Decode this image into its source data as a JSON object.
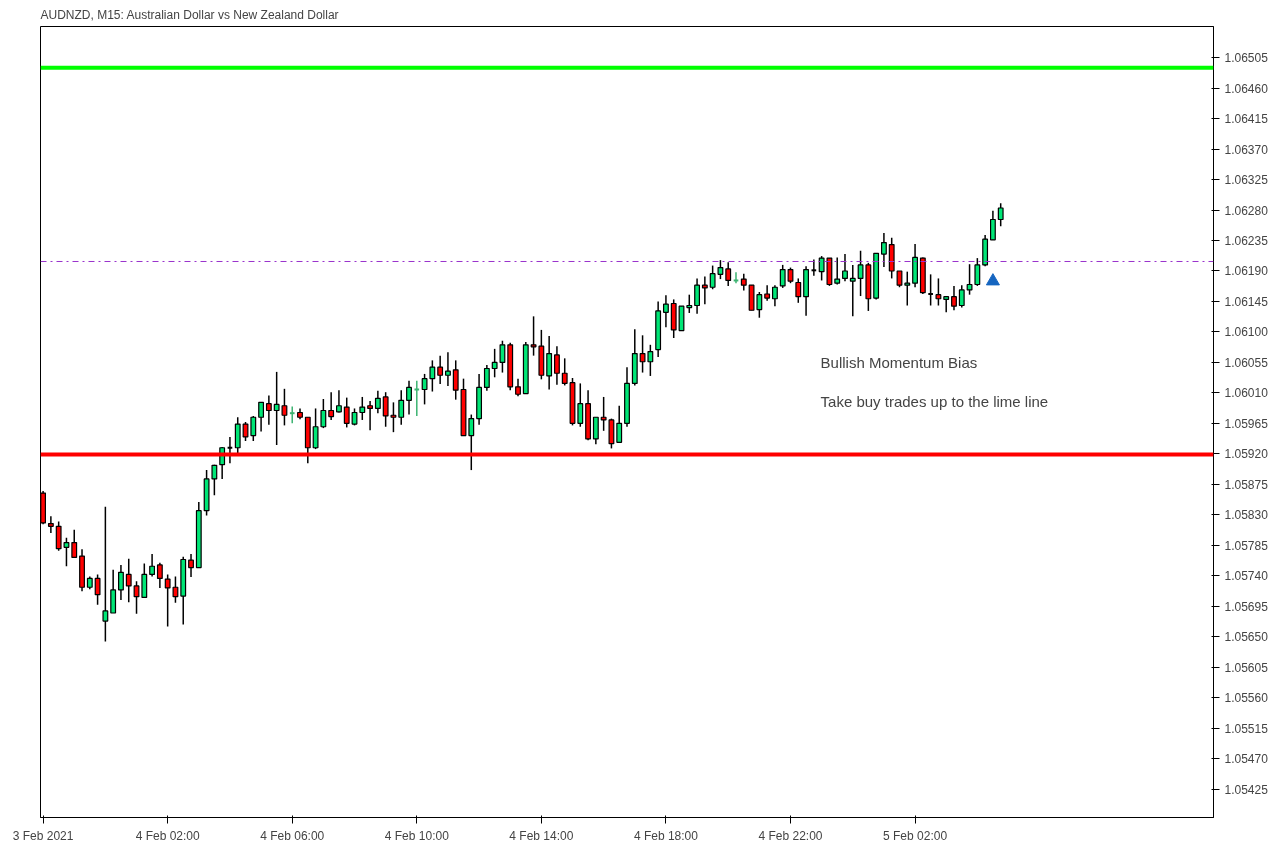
{
  "chart_data": {
    "type": "candlestick",
    "title": "AUDNZD, M15:  Australian Dollar vs New Zealand Dollar",
    "annotations": [
      "Bullish Momentum Bias",
      "Take buy trades up to the lime line"
    ],
    "x": [
      "2021-02-03T22:00",
      "2021-02-03T22:15",
      "2021-02-03T22:30",
      "2021-02-03T22:45",
      "2021-02-03T23:00",
      "2021-02-03T23:15",
      "2021-02-03T23:30",
      "2021-02-03T23:45",
      "2021-02-04T00:00",
      "2021-02-04T00:15",
      "2021-02-04T00:30",
      "2021-02-04T00:45",
      "2021-02-04T01:00",
      "2021-02-04T01:15",
      "2021-02-04T01:30",
      "2021-02-04T01:45",
      "2021-02-04T02:00",
      "2021-02-04T02:15",
      "2021-02-04T02:30",
      "2021-02-04T02:45",
      "2021-02-04T03:00",
      "2021-02-04T03:15",
      "2021-02-04T03:30",
      "2021-02-04T03:45",
      "2021-02-04T04:00",
      "2021-02-04T04:15",
      "2021-02-04T04:30",
      "2021-02-04T04:45",
      "2021-02-04T05:00",
      "2021-02-04T05:15",
      "2021-02-04T05:30",
      "2021-02-04T05:45",
      "2021-02-04T06:00",
      "2021-02-04T06:15",
      "2021-02-04T06:30",
      "2021-02-04T06:45",
      "2021-02-04T07:00",
      "2021-02-04T07:15",
      "2021-02-04T07:30",
      "2021-02-04T07:45",
      "2021-02-04T08:00",
      "2021-02-04T08:15",
      "2021-02-04T08:30",
      "2021-02-04T08:45",
      "2021-02-04T09:00",
      "2021-02-04T09:15",
      "2021-02-04T09:30",
      "2021-02-04T09:45",
      "2021-02-04T10:00",
      "2021-02-04T10:15",
      "2021-02-04T10:30",
      "2021-02-04T10:45",
      "2021-02-04T11:00",
      "2021-02-04T11:15",
      "2021-02-04T11:30",
      "2021-02-04T11:45",
      "2021-02-04T12:00",
      "2021-02-04T12:15",
      "2021-02-04T12:30",
      "2021-02-04T12:45",
      "2021-02-04T13:00",
      "2021-02-04T13:15",
      "2021-02-04T13:30",
      "2021-02-04T13:45",
      "2021-02-04T14:00",
      "2021-02-04T14:15",
      "2021-02-04T14:30",
      "2021-02-04T14:45",
      "2021-02-04T15:00",
      "2021-02-04T15:15",
      "2021-02-04T15:30",
      "2021-02-04T15:45",
      "2021-02-04T16:00",
      "2021-02-04T16:15",
      "2021-02-04T16:30",
      "2021-02-04T16:45",
      "2021-02-04T17:00",
      "2021-02-04T17:15",
      "2021-02-04T17:30",
      "2021-02-04T17:45",
      "2021-02-04T18:00",
      "2021-02-04T18:15",
      "2021-02-04T18:30",
      "2021-02-04T18:45",
      "2021-02-04T19:00",
      "2021-02-04T19:15",
      "2021-02-04T19:30",
      "2021-02-04T19:45",
      "2021-02-04T20:00",
      "2021-02-04T20:15",
      "2021-02-04T20:30",
      "2021-02-04T20:45",
      "2021-02-04T21:00",
      "2021-02-04T21:15",
      "2021-02-04T21:30",
      "2021-02-04T21:45",
      "2021-02-04T22:00",
      "2021-02-04T22:15",
      "2021-02-04T22:30",
      "2021-02-04T22:45",
      "2021-02-04T23:00",
      "2021-02-04T23:15",
      "2021-02-04T23:30",
      "2021-02-04T23:45",
      "2021-02-05T00:00",
      "2021-02-05T00:15",
      "2021-02-05T00:30",
      "2021-02-05T00:45",
      "2021-02-05T01:00",
      "2021-02-05T01:15",
      "2021-02-05T01:30",
      "2021-02-05T01:45",
      "2021-02-05T02:00",
      "2021-02-05T02:15",
      "2021-02-05T02:30",
      "2021-02-05T02:45",
      "2021-02-05T03:00",
      "2021-02-05T03:15",
      "2021-02-05T03:30",
      "2021-02-05T03:45",
      "2021-02-05T04:00",
      "2021-02-05T04:15",
      "2021-02-05T04:30",
      "2021-02-05T04:45"
    ],
    "ohlc": [
      [
        1.05862,
        1.05865,
        1.05816,
        1.05818
      ],
      [
        1.05817,
        1.05828,
        1.05803,
        1.05813
      ],
      [
        1.05813,
        1.0582,
        1.05777,
        1.0578
      ],
      [
        1.05782,
        1.05796,
        1.05754,
        1.05789
      ],
      [
        1.05789,
        1.05808,
        1.05766,
        1.05767
      ],
      [
        1.05769,
        1.05779,
        1.05717,
        1.05723
      ],
      [
        1.05723,
        1.05739,
        1.0572,
        1.05736
      ],
      [
        1.05736,
        1.05742,
        1.05697,
        1.05712
      ],
      [
        1.05673,
        1.05842,
        1.05643,
        1.05688
      ],
      [
        1.05685,
        1.05749,
        1.05685,
        1.05719
      ],
      [
        1.05719,
        1.05756,
        1.05704,
        1.05745
      ],
      [
        1.05742,
        1.05765,
        1.05701,
        1.05725
      ],
      [
        1.05725,
        1.05732,
        1.05684,
        1.05709
      ],
      [
        1.05708,
        1.05758,
        1.05707,
        1.05742
      ],
      [
        1.05742,
        1.05772,
        1.05739,
        1.05754
      ],
      [
        1.05756,
        1.05759,
        1.05722,
        1.05736
      ],
      [
        1.05735,
        1.05742,
        1.05665,
        1.05722
      ],
      [
        1.05723,
        1.05739,
        1.057,
        1.05709
      ],
      [
        1.0571,
        1.05768,
        1.05668,
        1.05764
      ],
      [
        1.05763,
        1.05772,
        1.05738,
        1.05752
      ],
      [
        1.05752,
        1.05849,
        1.05752,
        1.05836
      ],
      [
        1.05836,
        1.05896,
        1.05829,
        1.05883
      ],
      [
        1.05883,
        1.05904,
        1.05859,
        1.05903
      ],
      [
        1.05904,
        1.0593,
        1.05883,
        1.05929
      ],
      [
        1.05929,
        1.05945,
        1.05906,
        1.05929
      ],
      [
        1.05929,
        1.05974,
        1.05919,
        1.05964
      ],
      [
        1.05964,
        1.05967,
        1.05939,
        1.05945
      ],
      [
        1.05947,
        1.05976,
        1.05939,
        1.05974
      ],
      [
        1.05974,
        1.05996,
        1.05953,
        1.05996
      ],
      [
        1.05994,
        1.06006,
        1.05963,
        1.05984
      ],
      [
        1.05984,
        1.06041,
        1.05933,
        1.05993
      ],
      [
        1.05991,
        1.06016,
        1.05962,
        1.05977
      ],
      [
        1.0598,
        1.0599,
        1.05965,
        1.0598
      ],
      [
        1.05981,
        1.05987,
        1.05971,
        1.05974
      ],
      [
        1.05974,
        1.05974,
        1.05906,
        1.05929
      ],
      [
        1.05929,
        1.05987,
        1.05927,
        1.0596
      ],
      [
        1.0596,
        1.06001,
        1.05958,
        1.05984
      ],
      [
        1.05984,
        1.06011,
        1.0597,
        1.05975
      ],
      [
        1.05982,
        1.06014,
        1.05981,
        1.05991
      ],
      [
        1.05989,
        1.06003,
        1.05959,
        1.05965
      ],
      [
        1.05964,
        1.05987,
        1.05962,
        1.05981
      ],
      [
        1.05981,
        1.06004,
        1.0597,
        1.05989
      ],
      [
        1.05991,
        1.05998,
        1.05955,
        1.05987
      ],
      [
        1.05987,
        1.06013,
        1.0598,
        1.06002
      ],
      [
        1.06004,
        1.06011,
        1.0596,
        1.05976
      ],
      [
        1.05977,
        1.05996,
        1.05952,
        1.05974
      ],
      [
        1.05974,
        1.06014,
        1.05963,
        1.05999
      ],
      [
        1.05999,
        1.06028,
        1.05978,
        1.06018
      ],
      [
        1.06015,
        1.06028,
        1.05976,
        1.06015
      ],
      [
        1.06015,
        1.06038,
        1.05993,
        1.06031
      ],
      [
        1.06031,
        1.06058,
        1.06012,
        1.06048
      ],
      [
        1.06048,
        1.06065,
        1.06023,
        1.06036
      ],
      [
        1.06036,
        1.0607,
        1.0602,
        1.06042
      ],
      [
        1.06044,
        1.06058,
        1.06,
        1.06014
      ],
      [
        1.06015,
        1.06031,
        1.05947,
        1.05947
      ],
      [
        1.05947,
        1.05978,
        1.05896,
        1.05972
      ],
      [
        1.05972,
        1.06038,
        1.05963,
        1.06018
      ],
      [
        1.06018,
        1.06051,
        1.06013,
        1.06046
      ],
      [
        1.06046,
        1.06075,
        1.06033,
        1.06055
      ],
      [
        1.06055,
        1.06087,
        1.0604,
        1.06081
      ],
      [
        1.06081,
        1.06084,
        1.06014,
        1.06019
      ],
      [
        1.06019,
        1.06031,
        1.06005,
        1.06008
      ],
      [
        1.06009,
        1.06085,
        1.06009,
        1.06081
      ],
      [
        1.06081,
        1.06123,
        1.06065,
        1.06078
      ],
      [
        1.06079,
        1.06103,
        1.0603,
        1.06036
      ],
      [
        1.06035,
        1.06094,
        1.06015,
        1.06068
      ],
      [
        1.06066,
        1.06079,
        1.06022,
        1.06039
      ],
      [
        1.06039,
        1.06061,
        1.06021,
        1.06024
      ],
      [
        1.06025,
        1.06032,
        1.05962,
        1.05965
      ],
      [
        1.05965,
        1.06024,
        1.0596,
        1.05994
      ],
      [
        1.05994,
        1.06014,
        1.0594,
        1.05942
      ],
      [
        1.05942,
        1.05974,
        1.05934,
        1.05974
      ],
      [
        1.05974,
        1.06004,
        1.05954,
        1.0597
      ],
      [
        1.0597,
        1.05972,
        1.05928,
        1.05935
      ],
      [
        1.05937,
        1.05991,
        1.05937,
        1.05965
      ],
      [
        1.05965,
        1.06048,
        1.0596,
        1.06024
      ],
      [
        1.06024,
        1.06104,
        1.06021,
        1.06068
      ],
      [
        1.06068,
        1.06095,
        1.0604,
        1.06056
      ],
      [
        1.06056,
        1.06081,
        1.06035,
        1.06071
      ],
      [
        1.06074,
        1.06145,
        1.06063,
        1.06131
      ],
      [
        1.06129,
        1.06154,
        1.06107,
        1.06141
      ],
      [
        1.06142,
        1.06148,
        1.06091,
        1.06103
      ],
      [
        1.06102,
        1.06138,
        1.06102,
        1.06138
      ],
      [
        1.06136,
        1.06155,
        1.06128,
        1.06139
      ],
      [
        1.06139,
        1.06179,
        1.06127,
        1.06169
      ],
      [
        1.06169,
        1.06182,
        1.06141,
        1.06165
      ],
      [
        1.06166,
        1.06198,
        1.06163,
        1.06186
      ],
      [
        1.06185,
        1.06206,
        1.06178,
        1.06195
      ],
      [
        1.06193,
        1.06203,
        1.06168,
        1.06176
      ],
      [
        1.06176,
        1.06188,
        1.06172,
        1.06176
      ],
      [
        1.06178,
        1.06186,
        1.06161,
        1.06169
      ],
      [
        1.06169,
        1.06169,
        1.06132,
        1.06132
      ],
      [
        1.06133,
        1.06159,
        1.06121,
        1.06155
      ],
      [
        1.06156,
        1.06169,
        1.06146,
        1.0615
      ],
      [
        1.06149,
        1.06169,
        1.06138,
        1.06166
      ],
      [
        1.06168,
        1.06199,
        1.06165,
        1.06192
      ],
      [
        1.06192,
        1.06195,
        1.06172,
        1.06175
      ],
      [
        1.06173,
        1.06179,
        1.06143,
        1.06152
      ],
      [
        1.06152,
        1.06197,
        1.06124,
        1.06192
      ],
      [
        1.06191,
        1.06207,
        1.06183,
        1.06191
      ],
      [
        1.06189,
        1.06212,
        1.06176,
        1.06209
      ],
      [
        1.06209,
        1.06209,
        1.06168,
        1.0617
      ],
      [
        1.06172,
        1.0621,
        1.0617,
        1.06178
      ],
      [
        1.06179,
        1.06215,
        1.06175,
        1.0619
      ],
      [
        1.06175,
        1.06199,
        1.06123,
        1.06179
      ],
      [
        1.06179,
        1.0622,
        1.06153,
        1.06199
      ],
      [
        1.06199,
        1.06202,
        1.06131,
        1.06149
      ],
      [
        1.0615,
        1.06216,
        1.06148,
        1.06216
      ],
      [
        1.06215,
        1.06246,
        1.06196,
        1.06232
      ],
      [
        1.06229,
        1.06239,
        1.06179,
        1.0619
      ],
      [
        1.0619,
        1.0619,
        1.06166,
        1.06169
      ],
      [
        1.06169,
        1.06189,
        1.06139,
        1.06172
      ],
      [
        1.06172,
        1.0623,
        1.06166,
        1.0621
      ],
      [
        1.06209,
        1.0621,
        1.06156,
        1.06158
      ],
      [
        1.06156,
        1.06185,
        1.06139,
        1.06156
      ],
      [
        1.06155,
        1.06179,
        1.06139,
        1.06149
      ],
      [
        1.06148,
        1.06152,
        1.06129,
        1.06152
      ],
      [
        1.06152,
        1.06168,
        1.06132,
        1.06138
      ],
      [
        1.06139,
        1.06169,
        1.06136,
        1.06162
      ],
      [
        1.06162,
        1.062,
        1.06155,
        1.0617
      ],
      [
        1.0617,
        1.06209,
        1.06168,
        1.06199
      ],
      [
        1.06199,
        1.06243,
        1.06197,
        1.06237
      ],
      [
        1.06236,
        1.06279,
        1.06236,
        1.06266
      ],
      [
        1.06266,
        1.0629,
        1.06256,
        1.06283
      ]
    ],
    "colors": [
      "#ff0000",
      "#ff0000",
      "#ff0000",
      "#00e676",
      "#ff0000",
      "#ff0000",
      "#00e676",
      "#ff0000",
      "#00e676",
      "#00e676",
      "#00e676",
      "#ff0000",
      "#ff0000",
      "#00e676",
      "#00e676",
      "#ff0000",
      "#ff0000",
      "#ff0000",
      "#00e676",
      "#ff0000",
      "#00e676",
      "#00e676",
      "#00e676",
      "#00e676",
      "#000000",
      "#00e676",
      "#ff0000",
      "#00e676",
      "#00e676",
      "#ff0000",
      "#00e676",
      "#ff0000",
      "#3cb371",
      "#ff0000",
      "#ff0000",
      "#00e676",
      "#00e676",
      "#ff0000",
      "#00e676",
      "#ff0000",
      "#00e676",
      "#00e676",
      "#ff0000",
      "#00e676",
      "#ff0000",
      "#ff0000",
      "#00e676",
      "#00e676",
      "#3cb371",
      "#00e676",
      "#00e676",
      "#ff0000",
      "#00e676",
      "#ff0000",
      "#ff0000",
      "#00e676",
      "#00e676",
      "#00e676",
      "#00e676",
      "#00e676",
      "#ff0000",
      "#ff0000",
      "#00e676",
      "#ff0000",
      "#ff0000",
      "#00e676",
      "#ff0000",
      "#ff0000",
      "#ff0000",
      "#00e676",
      "#ff0000",
      "#00e676",
      "#ff0000",
      "#ff0000",
      "#00e676",
      "#00e676",
      "#00e676",
      "#ff0000",
      "#00e676",
      "#00e676",
      "#00e676",
      "#ff0000",
      "#00e676",
      "#00e676",
      "#00e676",
      "#ff0000",
      "#00e676",
      "#00e676",
      "#ff0000",
      "#3cb371",
      "#ff0000",
      "#ff0000",
      "#00e676",
      "#ff0000",
      "#00e676",
      "#00e676",
      "#ff0000",
      "#ff0000",
      "#00e676",
      "#000000",
      "#00e676",
      "#ff0000",
      "#00e676",
      "#00e676",
      "#00e676",
      "#00e676",
      "#ff0000",
      "#00e676",
      "#00e676",
      "#ff0000",
      "#ff0000",
      "#00e676",
      "#00e676",
      "#ff0000",
      "#000000",
      "#ff0000",
      "#00e676",
      "#ff0000",
      "#00e676",
      "#00e676",
      "#00e676",
      "#00e676",
      "#00e676",
      "#00e676"
    ],
    "series": [
      {
        "type": "scatter",
        "marker": "triangle",
        "color": "#1565c0",
        "x": [
          "2021-02-05T04:30"
        ],
        "values": [
          1.06175
        ]
      }
    ],
    "ref_lines": [
      {
        "axis": "y",
        "value": 1.0649,
        "color": "#00ff00",
        "line_style": "solid"
      },
      {
        "axis": "y",
        "value": 1.05919,
        "color": "#ff0000",
        "line_style": "solid"
      },
      {
        "axis": "y",
        "value": 1.06204,
        "color": "#9932cc",
        "line_style": "dashdot"
      }
    ],
    "xlim": [
      "2021-02-03T21:55",
      "2021-02-05T11:35"
    ],
    "xticks": [
      {
        "value": "2021-02-03T22:00",
        "label": "3 Feb 2021"
      },
      {
        "value": "2021-02-04T02:00",
        "label": "4 Feb 02:00"
      },
      {
        "value": "2021-02-04T06:00",
        "label": "4 Feb 06:00"
      },
      {
        "value": "2021-02-04T10:00",
        "label": "4 Feb 10:00"
      },
      {
        "value": "2021-02-04T14:00",
        "label": "4 Feb 14:00"
      },
      {
        "value": "2021-02-04T18:00",
        "label": "4 Feb 18:00"
      },
      {
        "value": "2021-02-04T22:00",
        "label": "4 Feb 22:00"
      },
      {
        "value": "2021-02-05T02:00",
        "label": "5 Feb 02:00"
      }
    ],
    "ylim": [
      1.05383,
      1.06551
    ],
    "yticks": [
      {
        "value": 1.05425,
        "label": "1.05425"
      },
      {
        "value": 1.0547,
        "label": "1.05470"
      },
      {
        "value": 1.05515,
        "label": "1.05515"
      },
      {
        "value": 1.0556,
        "label": "1.05560"
      },
      {
        "value": 1.05605,
        "label": "1.05605"
      },
      {
        "value": 1.0565,
        "label": "1.05650"
      },
      {
        "value": 1.05695,
        "label": "1.05695"
      },
      {
        "value": 1.0574,
        "label": "1.05740"
      },
      {
        "value": 1.05785,
        "label": "1.05785"
      },
      {
        "value": 1.0583,
        "label": "1.05830"
      },
      {
        "value": 1.05875,
        "label": "1.05875"
      },
      {
        "value": 1.0592,
        "label": "1.05920"
      },
      {
        "value": 1.05965,
        "label": "1.05965"
      },
      {
        "value": 1.0601,
        "label": "1.06010"
      },
      {
        "value": 1.06055,
        "label": "1.06055"
      },
      {
        "value": 1.061,
        "label": "1.06100"
      },
      {
        "value": 1.06145,
        "label": "1.06145"
      },
      {
        "value": 1.0619,
        "label": "1.06190"
      },
      {
        "value": 1.06235,
        "label": "1.06235"
      },
      {
        "value": 1.0628,
        "label": "1.06280"
      },
      {
        "value": 1.06325,
        "label": "1.06325"
      },
      {
        "value": 1.0637,
        "label": "1.06370"
      },
      {
        "value": 1.06415,
        "label": "1.06415"
      },
      {
        "value": 1.0646,
        "label": "1.06460"
      },
      {
        "value": 1.06505,
        "label": "1.06505"
      }
    ],
    "grid": false
  }
}
